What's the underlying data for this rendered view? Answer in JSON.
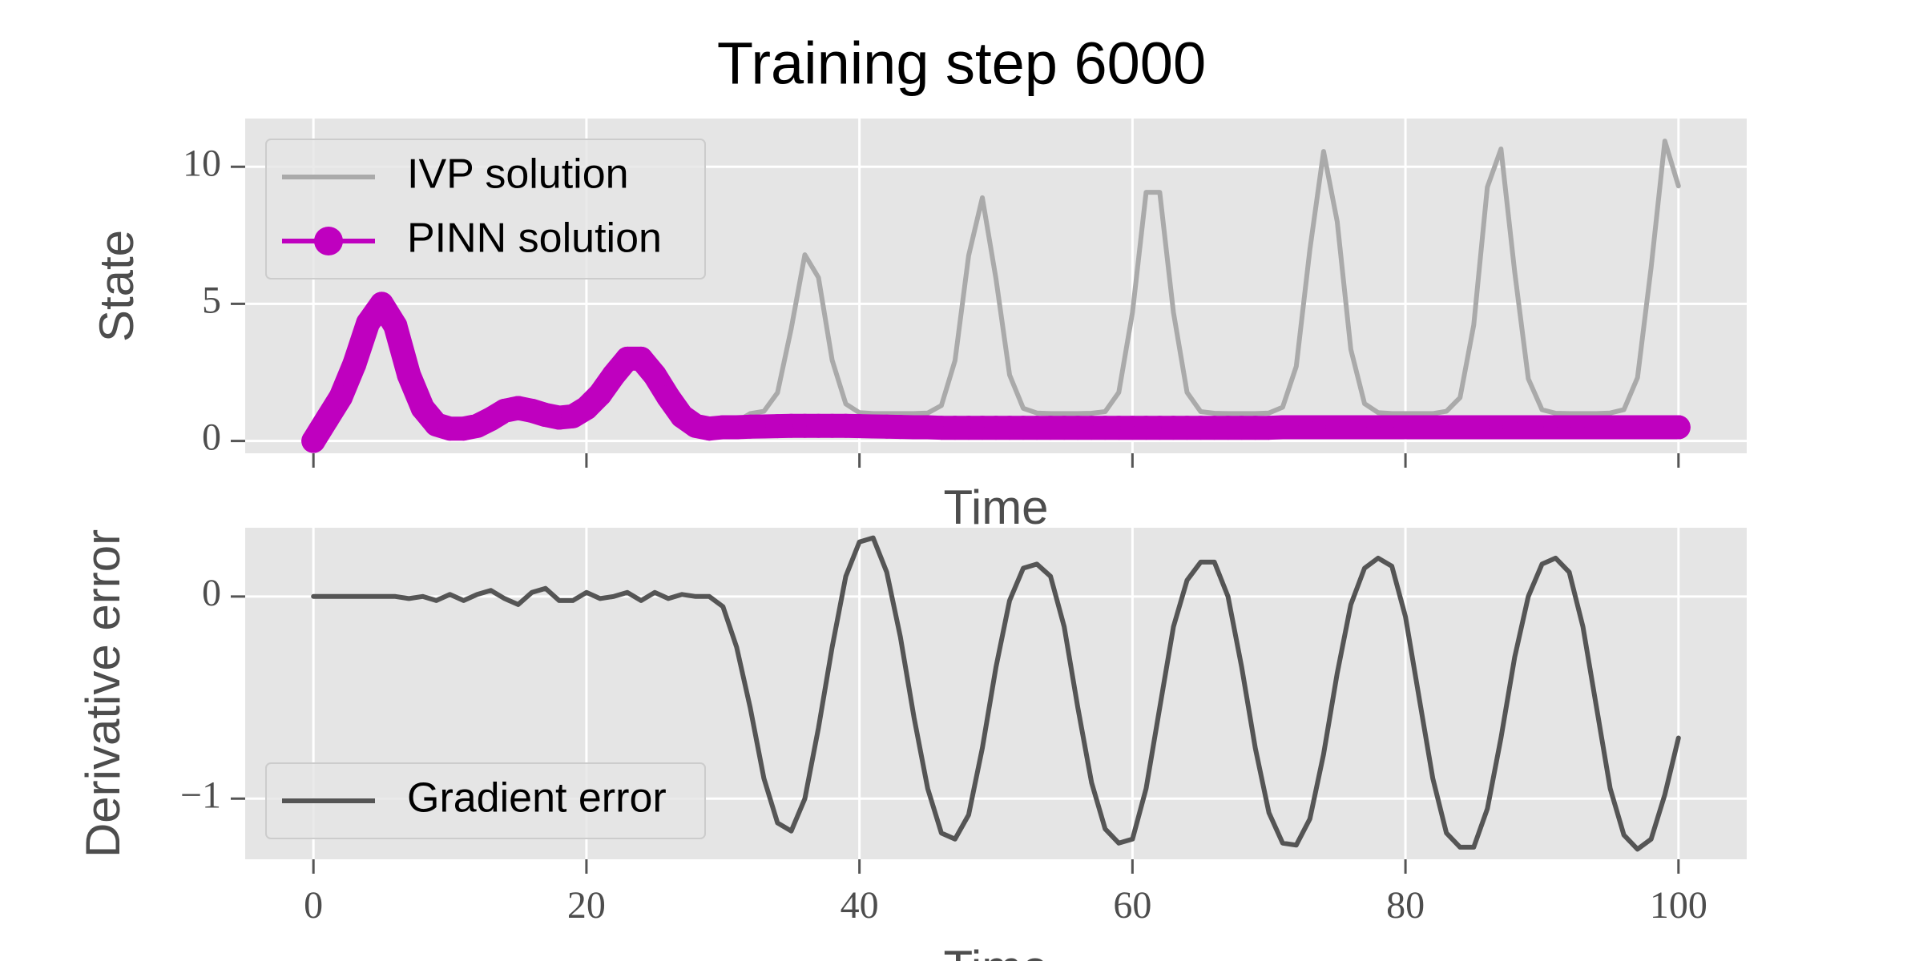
{
  "title": "Training step 6000",
  "chart_data": [
    {
      "type": "line",
      "xlabel": "Time",
      "ylabel": "State",
      "grid": true,
      "legend": "upper left",
      "xtick_labels": false,
      "x": [
        0,
        1,
        2,
        3,
        4,
        5,
        6,
        7,
        8,
        9,
        10,
        11,
        12,
        13,
        14,
        15,
        16,
        17,
        18,
        19,
        20,
        21,
        22,
        23,
        24,
        25,
        26,
        27,
        28,
        29,
        30,
        31,
        32,
        33,
        34,
        35,
        36,
        37,
        38,
        39,
        40,
        41,
        42,
        43,
        44,
        45,
        46,
        47,
        48,
        49,
        50,
        51,
        52,
        53,
        54,
        55,
        56,
        57,
        58,
        59,
        60,
        61,
        62,
        63,
        64,
        65,
        66,
        67,
        68,
        69,
        70,
        71,
        72,
        73,
        74,
        75,
        76,
        77,
        78,
        79,
        80,
        81,
        82,
        83,
        84,
        85,
        86,
        87,
        88,
        89,
        90,
        91,
        92,
        93,
        94,
        95,
        96,
        97,
        98,
        99,
        100
      ],
      "xlim": [
        -5,
        105
      ],
      "xticks": [
        0,
        20,
        40,
        60,
        80,
        100
      ],
      "ylim": [
        -0.45,
        11.76
      ],
      "yticks": [
        0,
        5,
        10
      ],
      "series": [
        {
          "name": "IVP solution",
          "color": "#aaaaaa",
          "values": [
            0,
            0.8,
            1.6,
            2.8,
            4.3,
            5.0,
            4.2,
            2.4,
            1.2,
            0.6,
            0.45,
            0.45,
            0.55,
            0.8,
            1.1,
            1.2,
            1.1,
            0.95,
            0.85,
            0.9,
            1.2,
            1.7,
            2.4,
            3.0,
            3.0,
            2.4,
            1.6,
            0.9,
            0.55,
            0.45,
            0.5,
            0.7,
            1.0,
            1.08,
            1.76,
            4.1,
            6.79,
            5.96,
            2.94,
            1.35,
            1.03,
            1.0,
            1.0,
            1.0,
            1.0,
            1.02,
            1.29,
            2.93,
            6.76,
            8.87,
            5.92,
            2.41,
            1.19,
            1.02,
            1.0,
            1.0,
            1.0,
            1.01,
            1.07,
            1.77,
            4.69,
            9.07,
            9.07,
            4.69,
            1.77,
            1.07,
            1.01,
            1.0,
            1.0,
            1.0,
            1.02,
            1.23,
            2.72,
            6.98,
            10.56,
            8.0,
            3.34,
            1.36,
            1.03,
            1.0,
            1.0,
            1.0,
            1.0,
            1.08,
            1.58,
            4.23,
            9.26,
            10.65,
            6.17,
            2.27,
            1.14,
            1.01,
            1.0,
            1.0,
            1.0,
            1.02,
            1.14,
            2.31,
            6.33,
            10.94,
            9.3
          ]
        },
        {
          "name": "PINN solution",
          "color": "#bf00bf",
          "marker": "o",
          "values": [
            0,
            0.8,
            1.6,
            2.8,
            4.3,
            5.0,
            4.2,
            2.4,
            1.2,
            0.6,
            0.45,
            0.45,
            0.55,
            0.8,
            1.1,
            1.2,
            1.1,
            0.95,
            0.85,
            0.9,
            1.2,
            1.7,
            2.4,
            3.0,
            3.0,
            2.4,
            1.6,
            0.9,
            0.55,
            0.45,
            0.5,
            0.5,
            0.52,
            0.53,
            0.54,
            0.55,
            0.55,
            0.55,
            0.55,
            0.55,
            0.54,
            0.53,
            0.52,
            0.51,
            0.5,
            0.5,
            0.48,
            0.48,
            0.48,
            0.48,
            0.48,
            0.48,
            0.48,
            0.48,
            0.48,
            0.48,
            0.48,
            0.48,
            0.48,
            0.48,
            0.48,
            0.48,
            0.48,
            0.48,
            0.48,
            0.48,
            0.48,
            0.48,
            0.48,
            0.48,
            0.48,
            0.5,
            0.5,
            0.5,
            0.5,
            0.5,
            0.5,
            0.5,
            0.5,
            0.5,
            0.5,
            0.5,
            0.5,
            0.5,
            0.5,
            0.5,
            0.5,
            0.5,
            0.5,
            0.5,
            0.5,
            0.5,
            0.5,
            0.5,
            0.5,
            0.5,
            0.5,
            0.5,
            0.5,
            0.5,
            0.5
          ]
        }
      ]
    },
    {
      "type": "line",
      "xlabel": "Time",
      "ylabel": "Derivative error",
      "grid": true,
      "legend": "lower left",
      "xtick_labels": true,
      "x": [
        0,
        1,
        2,
        3,
        4,
        5,
        6,
        7,
        8,
        9,
        10,
        11,
        12,
        13,
        14,
        15,
        16,
        17,
        18,
        19,
        20,
        21,
        22,
        23,
        24,
        25,
        26,
        27,
        28,
        29,
        30,
        31,
        32,
        33,
        34,
        35,
        36,
        37,
        38,
        39,
        40,
        41,
        42,
        43,
        44,
        45,
        46,
        47,
        48,
        49,
        50,
        51,
        52,
        53,
        54,
        55,
        56,
        57,
        58,
        59,
        60,
        61,
        62,
        63,
        64,
        65,
        66,
        67,
        68,
        69,
        70,
        71,
        72,
        73,
        74,
        75,
        76,
        77,
        78,
        79,
        80,
        81,
        82,
        83,
        84,
        85,
        86,
        87,
        88,
        89,
        90,
        91,
        92,
        93,
        94,
        95,
        96,
        97,
        98,
        99,
        100
      ],
      "xlim": [
        -5,
        105
      ],
      "xticks": [
        0,
        20,
        40,
        60,
        80,
        100
      ],
      "ylim": [
        -1.3,
        0.34
      ],
      "yticks": [
        {
          "value": -1,
          "label": "−1"
        },
        0
      ],
      "series": [
        {
          "name": "Gradient error",
          "color": "#555555",
          "values": [
            0,
            0,
            0,
            0,
            0,
            0,
            0,
            -0.01,
            0,
            -0.02,
            0.01,
            -0.02,
            0.01,
            0.03,
            -0.01,
            -0.04,
            0.02,
            0.04,
            -0.02,
            -0.02,
            0.02,
            -0.01,
            0,
            0.02,
            -0.02,
            0.02,
            -0.01,
            0.01,
            0,
            0.0,
            -0.05,
            -0.25,
            -0.55,
            -0.9,
            -1.12,
            -1.16,
            -1.0,
            -0.65,
            -0.25,
            0.1,
            0.27,
            0.29,
            0.12,
            -0.2,
            -0.6,
            -0.95,
            -1.17,
            -1.2,
            -1.08,
            -0.75,
            -0.35,
            -0.02,
            0.14,
            0.16,
            0.1,
            -0.15,
            -0.55,
            -0.92,
            -1.15,
            -1.22,
            -1.2,
            -0.95,
            -0.55,
            -0.15,
            0.08,
            0.17,
            0.17,
            0.0,
            -0.35,
            -0.75,
            -1.07,
            -1.22,
            -1.23,
            -1.1,
            -0.78,
            -0.38,
            -0.04,
            0.14,
            0.19,
            0.15,
            -0.1,
            -0.5,
            -0.9,
            -1.17,
            -1.24,
            -1.24,
            -1.05,
            -0.7,
            -0.3,
            0.0,
            0.16,
            0.19,
            0.12,
            -0.15,
            -0.55,
            -0.95,
            -1.18,
            -1.25,
            -1.2,
            -0.98,
            -0.7
          ]
        }
      ]
    }
  ]
}
